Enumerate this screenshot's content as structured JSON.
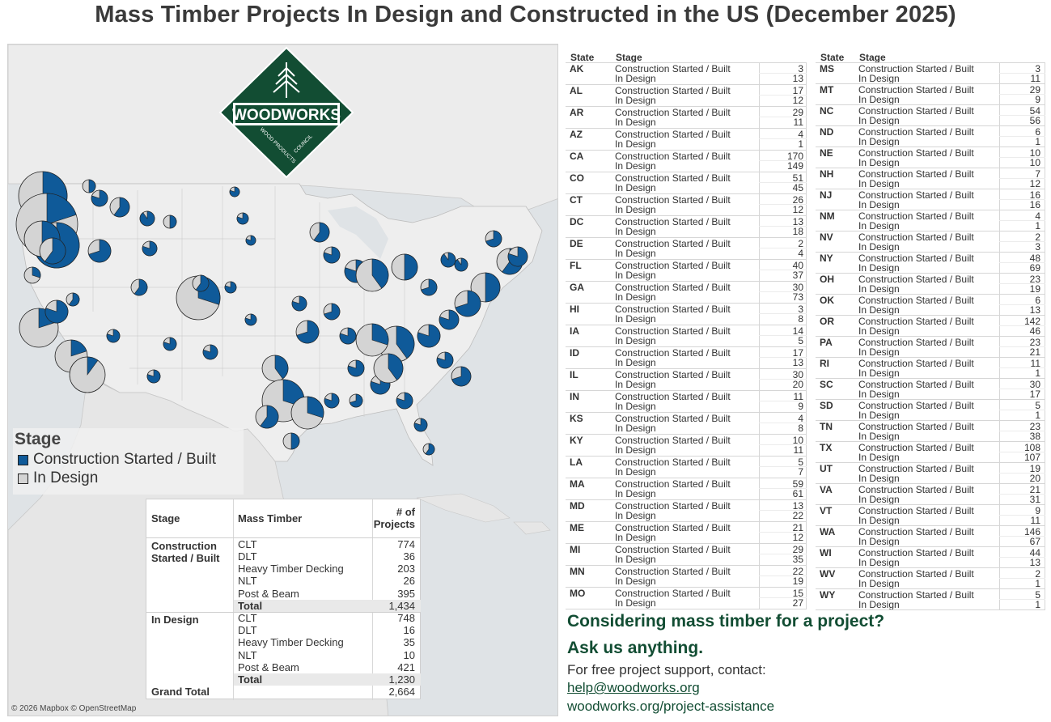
{
  "title": "Mass Timber Projects In Design and Constructed in the US (December 2025)",
  "colors": {
    "built": "#0f5a99",
    "design": "#d4d4d4",
    "brand": "#124d33"
  },
  "logo": {
    "name": "WOODWORKS",
    "sub_left": "WOOD PRODUCTS",
    "sub_right": "COUNCIL"
  },
  "map": {
    "attribution": "© 2026 Mapbox © OpenStreetMap"
  },
  "legend": {
    "title": "Stage",
    "items": [
      {
        "label": "Construction Started / Built",
        "color": "#0f5a99"
      },
      {
        "label": "In Design",
        "color": "#d4d4d4"
      }
    ]
  },
  "summary": {
    "headers": {
      "stage": "Stage",
      "mass_timber": "Mass Timber",
      "projects_line1": "# of",
      "projects_line2": "Projects"
    },
    "groups": [
      {
        "stage_line1": "Construction",
        "stage_line2": "Started / Built",
        "rows": [
          {
            "type": "CLT",
            "count": "774"
          },
          {
            "type": "DLT",
            "count": "36"
          },
          {
            "type": "Heavy Timber Decking",
            "count": "203"
          },
          {
            "type": "NLT",
            "count": "26"
          },
          {
            "type": "Post & Beam",
            "count": "395"
          }
        ],
        "total_label": "Total",
        "total": "1,434"
      },
      {
        "stage_line1": "In Design",
        "stage_line2": "",
        "rows": [
          {
            "type": "CLT",
            "count": "748"
          },
          {
            "type": "DLT",
            "count": "16"
          },
          {
            "type": "Heavy Timber Decking",
            "count": "35"
          },
          {
            "type": "NLT",
            "count": "10"
          },
          {
            "type": "Post & Beam",
            "count": "421"
          }
        ],
        "total_label": "Total",
        "total": "1,230"
      }
    ],
    "grand_total_label": "Grand Total",
    "grand_total": "2,664"
  },
  "states_header": {
    "state": "State",
    "stage": "Stage"
  },
  "stage_labels": {
    "built": "Construction Started / Built",
    "design": "In Design"
  },
  "states_left": [
    {
      "st": "AK",
      "built": "3",
      "design": "13"
    },
    {
      "st": "AL",
      "built": "17",
      "design": "12"
    },
    {
      "st": "AR",
      "built": "29",
      "design": "11"
    },
    {
      "st": "AZ",
      "built": "4",
      "design": "1"
    },
    {
      "st": "CA",
      "built": "170",
      "design": "149"
    },
    {
      "st": "CO",
      "built": "51",
      "design": "45"
    },
    {
      "st": "CT",
      "built": "26",
      "design": "12"
    },
    {
      "st": "DC",
      "built": "13",
      "design": "18"
    },
    {
      "st": "DE",
      "built": "2",
      "design": "4"
    },
    {
      "st": "FL",
      "built": "40",
      "design": "37"
    },
    {
      "st": "GA",
      "built": "30",
      "design": "73"
    },
    {
      "st": "HI",
      "built": "3",
      "design": "8"
    },
    {
      "st": "IA",
      "built": "14",
      "design": "5"
    },
    {
      "st": "ID",
      "built": "17",
      "design": "13"
    },
    {
      "st": "IL",
      "built": "30",
      "design": "20"
    },
    {
      "st": "IN",
      "built": "11",
      "design": "9"
    },
    {
      "st": "KS",
      "built": "4",
      "design": "8"
    },
    {
      "st": "KY",
      "built": "10",
      "design": "11"
    },
    {
      "st": "LA",
      "built": "5",
      "design": "7"
    },
    {
      "st": "MA",
      "built": "59",
      "design": "61"
    },
    {
      "st": "MD",
      "built": "13",
      "design": "22"
    },
    {
      "st": "ME",
      "built": "21",
      "design": "12"
    },
    {
      "st": "MI",
      "built": "29",
      "design": "35"
    },
    {
      "st": "MN",
      "built": "22",
      "design": "19"
    },
    {
      "st": "MO",
      "built": "15",
      "design": "27"
    }
  ],
  "states_right": [
    {
      "st": "MS",
      "built": "3",
      "design": "11"
    },
    {
      "st": "MT",
      "built": "29",
      "design": "9"
    },
    {
      "st": "NC",
      "built": "54",
      "design": "56"
    },
    {
      "st": "ND",
      "built": "6",
      "design": "1"
    },
    {
      "st": "NE",
      "built": "10",
      "design": "10"
    },
    {
      "st": "NH",
      "built": "7",
      "design": "12"
    },
    {
      "st": "NJ",
      "built": "16",
      "design": "16"
    },
    {
      "st": "NM",
      "built": "4",
      "design": "1"
    },
    {
      "st": "NV",
      "built": "2",
      "design": "3"
    },
    {
      "st": "NY",
      "built": "48",
      "design": "69"
    },
    {
      "st": "OH",
      "built": "23",
      "design": "19"
    },
    {
      "st": "OK",
      "built": "6",
      "design": "13"
    },
    {
      "st": "OR",
      "built": "142",
      "design": "46"
    },
    {
      "st": "PA",
      "built": "23",
      "design": "21"
    },
    {
      "st": "RI",
      "built": "11",
      "design": "1"
    },
    {
      "st": "SC",
      "built": "30",
      "design": "17"
    },
    {
      "st": "SD",
      "built": "5",
      "design": "1"
    },
    {
      "st": "TN",
      "built": "23",
      "design": "38"
    },
    {
      "st": "TX",
      "built": "108",
      "design": "107"
    },
    {
      "st": "UT",
      "built": "19",
      "design": "20"
    },
    {
      "st": "VA",
      "built": "21",
      "design": "31"
    },
    {
      "st": "VT",
      "built": "9",
      "design": "11"
    },
    {
      "st": "WA",
      "built": "146",
      "design": "67"
    },
    {
      "st": "WI",
      "built": "44",
      "design": "13"
    },
    {
      "st": "WV",
      "built": "2",
      "design": "1"
    },
    {
      "st": "WY",
      "built": "5",
      "design": "1"
    }
  ],
  "cta": {
    "line1": "Considering mass timber for a project?",
    "line2": "Ask us anything.",
    "line3": "For free project support, contact:",
    "email": "help@woodworks.org",
    "url": "woodworks.org/project-assistance"
  }
}
